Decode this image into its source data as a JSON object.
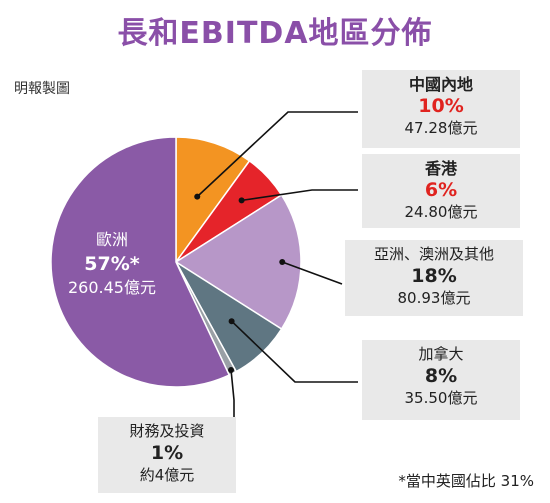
{
  "title": "長和EBITDA地區分佈",
  "source": "明報製圖",
  "footnote": "*當中英國佔比 31%",
  "colors": {
    "china": "#f39422",
    "hongkong": "#e5242a",
    "asia_australia": "#b797c8",
    "canada": "#5f7682",
    "finance": "#9aa0a6",
    "europe": "#8a5aa6",
    "accent_red": "#e0231f",
    "title": "#8a4fa8"
  },
  "chart_data": {
    "type": "pie",
    "title": "長和EBITDA地區分佈",
    "slices": [
      {
        "key": "china",
        "name": "中國內地",
        "pct_label": "10%",
        "percent": 10,
        "value_label": "47.28億元"
      },
      {
        "key": "hongkong",
        "name": "香港",
        "pct_label": "6%",
        "percent": 6,
        "value_label": "24.80億元"
      },
      {
        "key": "asia_australia",
        "name": "亞洲、澳洲及其他",
        "pct_label": "18%",
        "percent": 18,
        "value_label": "80.93億元"
      },
      {
        "key": "canada",
        "name": "加拿大",
        "pct_label": "8%",
        "percent": 8,
        "value_label": "35.50億元"
      },
      {
        "key": "finance",
        "name": "財務及投資",
        "pct_label": "1%",
        "percent": 1,
        "value_label": "約4億元"
      },
      {
        "key": "europe",
        "name": "歐洲",
        "pct_label": "57%*",
        "percent": 57,
        "value_label": "260.45億元"
      }
    ]
  }
}
